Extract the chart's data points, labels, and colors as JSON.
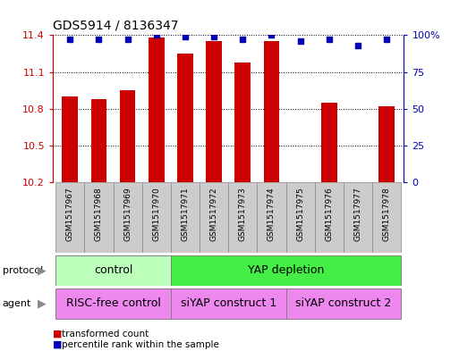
{
  "title": "GDS5914 / 8136347",
  "samples": [
    "GSM1517967",
    "GSM1517968",
    "GSM1517969",
    "GSM1517970",
    "GSM1517971",
    "GSM1517972",
    "GSM1517973",
    "GSM1517974",
    "GSM1517975",
    "GSM1517976",
    "GSM1517977",
    "GSM1517978"
  ],
  "bar_values": [
    10.9,
    10.88,
    10.95,
    11.38,
    11.25,
    11.35,
    11.18,
    11.35,
    10.2,
    10.85,
    10.2,
    10.82
  ],
  "dot_values": [
    97,
    97,
    97,
    100,
    99,
    99,
    97,
    100,
    96,
    97,
    93,
    97
  ],
  "ymin": 10.2,
  "ymax": 11.4,
  "y2min": 0,
  "y2max": 100,
  "yticks": [
    10.2,
    10.5,
    10.8,
    11.1,
    11.4
  ],
  "y2ticks": [
    0,
    25,
    50,
    75,
    100
  ],
  "y2tick_labels": [
    "0",
    "25",
    "50",
    "75",
    "100%"
  ],
  "bar_color": "#cc0000",
  "dot_color": "#0000bb",
  "protocol_labels": [
    {
      "text": "control",
      "start": 0,
      "end": 3,
      "color": "#bbffbb"
    },
    {
      "text": "YAP depletion",
      "start": 4,
      "end": 11,
      "color": "#44ee44"
    }
  ],
  "agent_labels": [
    {
      "text": "RISC-free control",
      "start": 0,
      "end": 3,
      "color": "#ee88ee"
    },
    {
      "text": "siYAP construct 1",
      "start": 4,
      "end": 7,
      "color": "#ee88ee"
    },
    {
      "text": "siYAP construct 2",
      "start": 8,
      "end": 11,
      "color": "#ee88ee"
    }
  ],
  "legend_items": [
    {
      "label": "transformed count",
      "color": "#cc0000"
    },
    {
      "label": "percentile rank within the sample",
      "color": "#0000bb"
    }
  ],
  "title_fontsize": 10,
  "bar_width": 0.55,
  "sample_box_color": "#cccccc",
  "sample_box_edge": "#888888"
}
